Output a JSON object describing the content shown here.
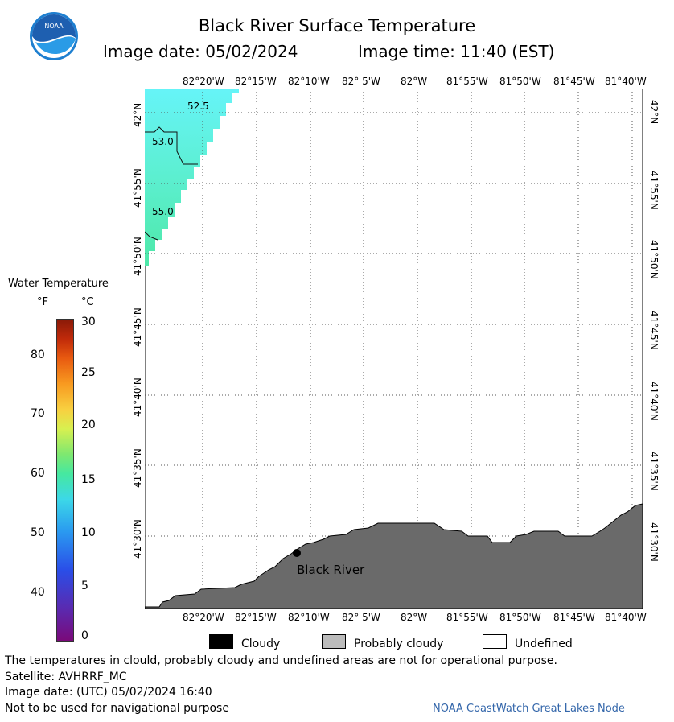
{
  "header": {
    "title": "Black River Surface Temperature",
    "image_date_label": "Image date: 05/02/2024",
    "image_time_label": "Image time: 11:40 (EST)",
    "logo_text": "NOAA"
  },
  "map": {
    "lon_ticks": [
      "82°20'W",
      "82°15'W",
      "82°10'W",
      "82° 5'W",
      "82°W",
      "81°55'W",
      "81°50'W",
      "81°45'W",
      "81°40'W"
    ],
    "lat_ticks": [
      "42°N",
      "41°55'N",
      "41°50'N",
      "41°45'N",
      "41°40'N",
      "41°35'N",
      "41°30'N"
    ],
    "contours": [
      "52.5",
      "53.0",
      "55.0"
    ],
    "station_label": "Black River",
    "colors": {
      "land": "#6a6a6a",
      "water_cyan": "#5ff5f5",
      "water_green": "#55eeb5",
      "grid": "#555555"
    }
  },
  "colorbar": {
    "title": "Water Temperature",
    "unit_f": "°F",
    "unit_c": "°C",
    "f_ticks": [
      "80",
      "70",
      "60",
      "50",
      "40"
    ],
    "c_ticks": [
      "30",
      "25",
      "20",
      "15",
      "10",
      "5",
      "0"
    ]
  },
  "legend": {
    "cloudy": "Cloudy",
    "probably_cloudy": "Probably cloudy",
    "undefined": "Undefined",
    "colors": {
      "cloudy": "#000000",
      "probably_cloudy": "#bbbbbb",
      "undefined": "#ffffff"
    }
  },
  "footer": {
    "disclaimer": "The temperatures in clould, probably cloudy and undefined areas are not for operational purpose.",
    "satellite": "Satellite: AVHRRF_MC",
    "utc_date": "Image date: (UTC) 05/02/2024  16:40",
    "nav_warning": "Not to be used for navigational purpose",
    "credit": "NOAA CoastWatch Great Lakes Node"
  }
}
